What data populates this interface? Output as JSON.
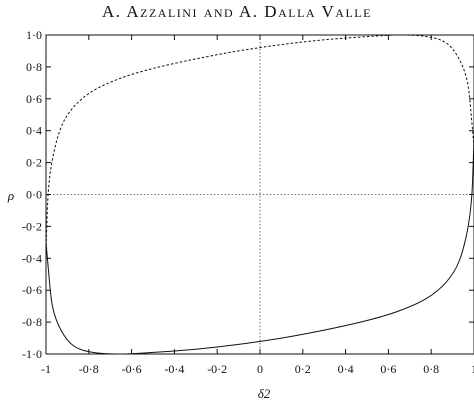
{
  "header": {
    "running_head": "A. Azzalini and A. Dalla Valle"
  },
  "chart_data": {
    "type": "line",
    "title": "",
    "xlabel": "δ2",
    "ylabel": "ρ",
    "xlim": [
      -1,
      1
    ],
    "ylim": [
      -1,
      1
    ],
    "xticks": [
      -1,
      -0.8,
      -0.6,
      -0.4,
      -0.2,
      0,
      0.2,
      0.4,
      0.6,
      0.8,
      1
    ],
    "yticks": [
      -1,
      -0.8,
      -0.6,
      -0.4,
      -0.2,
      0,
      0.2,
      0.4,
      0.6,
      0.8,
      1
    ],
    "xtick_labels": [
      "-1",
      "-0·8",
      "-0·6",
      "-0·4",
      "-0·2",
      "0",
      "0·2",
      "0·4",
      "0·6",
      "0·8",
      "1"
    ],
    "ytick_labels": [
      "-1·0",
      "-0·8",
      "-0·6",
      "-0·4",
      "-0·2",
      "0·0",
      "0·2",
      "0·4",
      "0·6",
      "0·8",
      "1·0"
    ],
    "reference_lines": {
      "x": 0,
      "y": 0,
      "style": "dotted"
    },
    "grid": false,
    "series": [
      {
        "style": "dashed",
        "x": [
          -1.0,
          -0.99,
          -0.97,
          -0.93,
          -0.87,
          -0.78,
          -0.65,
          -0.5,
          -0.3,
          -0.1,
          0.1,
          0.3,
          0.5,
          0.65,
          0.78,
          0.87,
          0.93,
          0.97,
          0.99,
          1.0
        ],
        "y": [
          -0.35,
          0.0,
          0.22,
          0.42,
          0.55,
          0.65,
          0.73,
          0.79,
          0.85,
          0.9,
          0.94,
          0.97,
          0.99,
          1.0,
          0.99,
          0.95,
          0.85,
          0.7,
          0.45,
          0.3
        ]
      },
      {
        "style": "solid",
        "x": [
          -1.0,
          -0.99,
          -0.97,
          -0.93,
          -0.87,
          -0.78,
          -0.65,
          -0.5,
          -0.3,
          -0.1,
          0.1,
          0.3,
          0.5,
          0.65,
          0.78,
          0.87,
          0.93,
          0.97,
          0.99,
          1.0
        ],
        "y": [
          -0.3,
          -0.45,
          -0.7,
          -0.85,
          -0.95,
          -0.99,
          -1.0,
          -0.99,
          -0.97,
          -0.94,
          -0.9,
          -0.85,
          -0.79,
          -0.73,
          -0.65,
          -0.55,
          -0.42,
          -0.22,
          0.0,
          0.35
        ]
      }
    ]
  }
}
